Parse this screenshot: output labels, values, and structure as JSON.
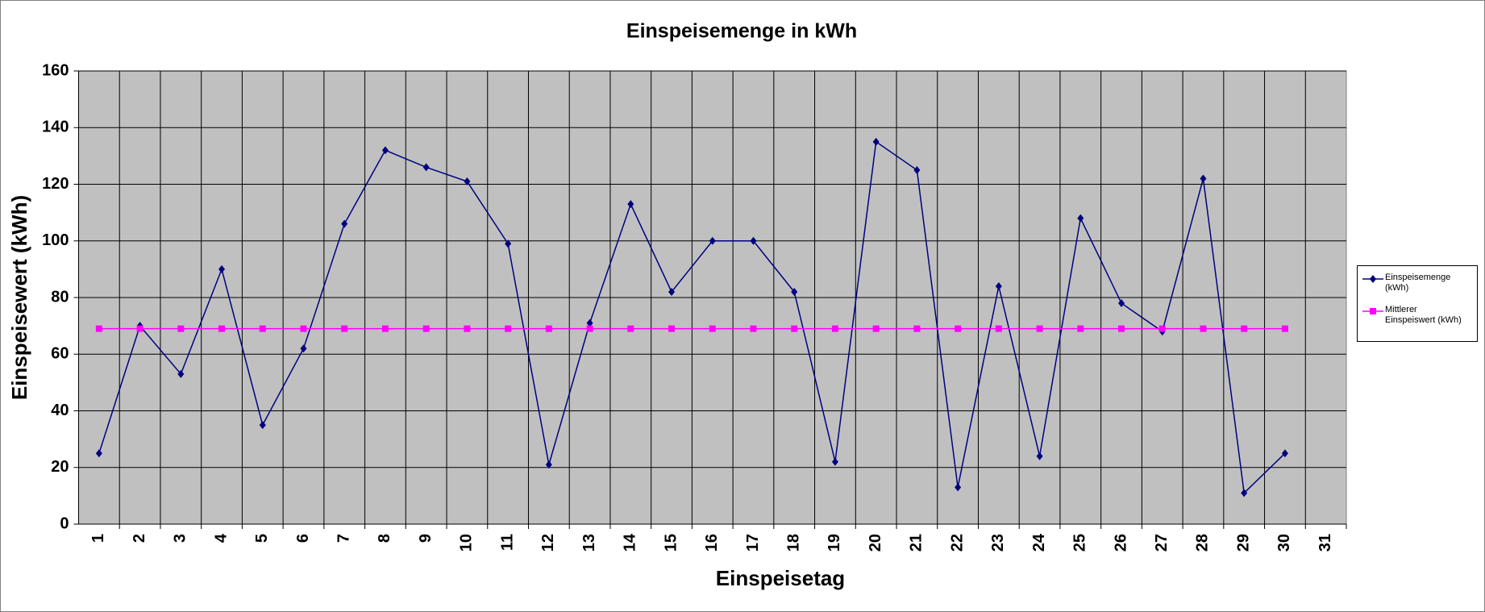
{
  "chart_data": {
    "type": "line",
    "title": "Einspeisemenge in kWh",
    "xlabel": "Einspeisetag",
    "ylabel": "Einspeisewert  (kWh)",
    "categories": [
      "1",
      "2",
      "3",
      "4",
      "5",
      "6",
      "7",
      "8",
      "9",
      "10",
      "11",
      "12",
      "13",
      "14",
      "15",
      "16",
      "17",
      "18",
      "19",
      "20",
      "21",
      "22",
      "23",
      "24",
      "25",
      "26",
      "27",
      "28",
      "29",
      "30",
      "31"
    ],
    "series": [
      {
        "name": "Einspeisemenge (kWh)",
        "color": "#000080",
        "marker": "diamond",
        "values": [
          25,
          70,
          53,
          90,
          35,
          62,
          106,
          132,
          126,
          121,
          99,
          21,
          71,
          113,
          82,
          100,
          100,
          82,
          22,
          135,
          125,
          13,
          84,
          24,
          108,
          78,
          68,
          122,
          11,
          25,
          null
        ]
      },
      {
        "name": "Mittlerer Einspeiswert (kWh)",
        "color": "#ff00ff",
        "marker": "square",
        "values": [
          69,
          69,
          69,
          69,
          69,
          69,
          69,
          69,
          69,
          69,
          69,
          69,
          69,
          69,
          69,
          69,
          69,
          69,
          69,
          69,
          69,
          69,
          69,
          69,
          69,
          69,
          69,
          69,
          69,
          69,
          null
        ]
      }
    ],
    "ylim": [
      0,
      160
    ],
    "yticks": [
      0,
      20,
      40,
      60,
      80,
      100,
      120,
      140,
      160
    ],
    "grid": true,
    "legend": "right"
  }
}
